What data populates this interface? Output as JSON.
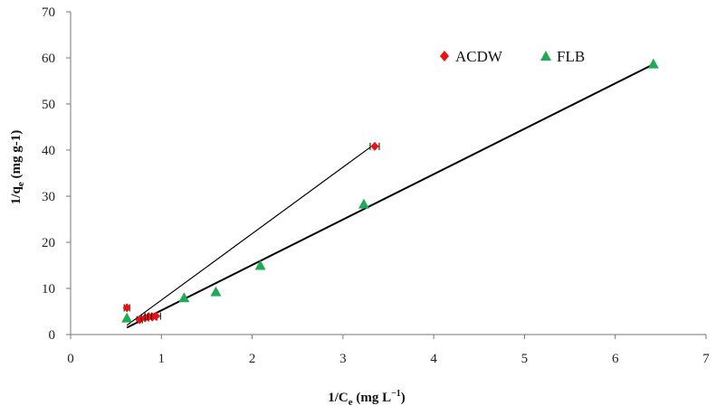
{
  "chart_data": {
    "type": "scatter",
    "xlabel": {
      "main": "1/C",
      "sub": "e",
      "rest": " (mg L",
      "sup": "−1",
      "end": ")"
    },
    "ylabel": {
      "main": "1/q",
      "sub": "e",
      "rest": "  (mg g-1)"
    },
    "xlim": [
      0,
      7
    ],
    "ylim": [
      0,
      70
    ],
    "xticks": [
      0,
      1,
      2,
      3,
      4,
      5,
      6,
      7
    ],
    "yticks": [
      0,
      10,
      20,
      30,
      40,
      50,
      60,
      70
    ],
    "grid": false,
    "legend_position": "top-right",
    "series": [
      {
        "name": "ACDW",
        "marker": "diamond",
        "color": "#ee1111",
        "x": [
          0.62,
          0.76,
          0.82,
          0.86,
          0.9,
          0.94,
          3.35
        ],
        "y": [
          5.8,
          3.2,
          3.6,
          3.9,
          3.8,
          4.0,
          40.8
        ],
        "xerr": [
          0.03,
          0.03,
          0.04,
          0.04,
          0.05,
          0.05,
          0.05
        ]
      },
      {
        "name": "FLB",
        "marker": "triangle",
        "color": "#1faa55",
        "x": [
          0.62,
          1.25,
          1.6,
          2.09,
          3.23,
          6.42
        ],
        "y": [
          3.6,
          8.0,
          9.3,
          15.0,
          28.3,
          58.7
        ]
      }
    ],
    "fits": [
      {
        "series": "ACDW",
        "x0": 0.62,
        "y0": 2.0,
        "x1": 3.3,
        "y1": 40.6,
        "width": 1.2
      },
      {
        "series": "FLB",
        "x0": 0.62,
        "y0": 1.5,
        "x1": 6.42,
        "y1": 58.6,
        "width": 2.0
      }
    ]
  }
}
